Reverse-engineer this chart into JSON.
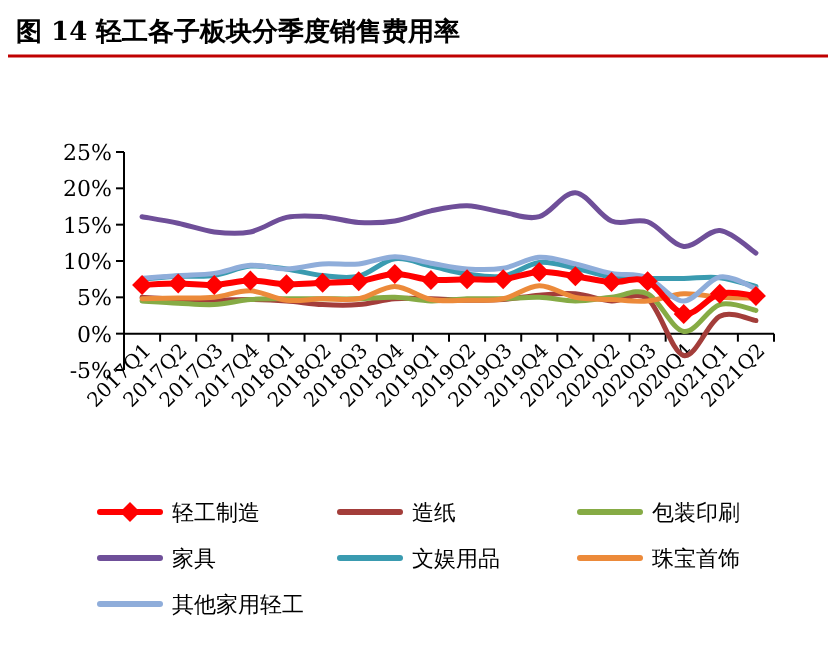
{
  "chart_data": {
    "type": "line",
    "title": "图 14  轻工各子板块分季度销售费用率",
    "categories": [
      "2017Q1",
      "2017Q2",
      "2017Q3",
      "2017Q4",
      "2018Q1",
      "2018Q2",
      "2018Q3",
      "2018Q4",
      "2019Q1",
      "2019Q2",
      "2019Q3",
      "2019Q4",
      "2020Q1",
      "2020Q2",
      "2020Q3",
      "2020Q4",
      "2021Q1",
      "2021Q2"
    ],
    "ylim": [
      -5,
      25
    ],
    "yticks": [
      {
        "value": -5,
        "label": "-5%"
      },
      {
        "value": 0,
        "label": "0%"
      },
      {
        "value": 5,
        "label": "5%"
      },
      {
        "value": 10,
        "label": "10%"
      },
      {
        "value": 15,
        "label": "15%"
      },
      {
        "value": 20,
        "label": "20%"
      },
      {
        "value": 25,
        "label": "25%"
      }
    ],
    "legend": "bottom",
    "grid": false,
    "line_style": "solid",
    "series": [
      {
        "name": "轻工制造",
        "color": "#ff0000",
        "marker": "diamond",
        "values": [
          6.7,
          6.9,
          6.7,
          7.3,
          6.8,
          7.0,
          7.2,
          8.2,
          7.4,
          7.5,
          7.5,
          8.5,
          7.9,
          7.1,
          7.2,
          2.7,
          5.5,
          5.2
        ]
      },
      {
        "name": "造纸",
        "color": "#a33d3a",
        "values": [
          5.0,
          4.7,
          4.6,
          4.7,
          4.5,
          4.0,
          4.0,
          4.8,
          4.8,
          4.6,
          4.7,
          5.3,
          5.5,
          4.5,
          4.8,
          -3.0,
          2.4,
          1.8
        ]
      },
      {
        "name": "包装印刷",
        "color": "#86ab45",
        "values": [
          4.5,
          4.2,
          4.0,
          4.7,
          4.8,
          4.8,
          4.8,
          5.0,
          4.5,
          4.8,
          4.8,
          5.0,
          4.5,
          5.0,
          5.5,
          0.3,
          4.0,
          3.2
        ]
      },
      {
        "name": "家具",
        "color": "#6f4f99",
        "values": [
          16.1,
          15.2,
          14.0,
          14.0,
          16.0,
          16.1,
          15.3,
          15.5,
          16.9,
          17.6,
          16.7,
          16.1,
          19.4,
          15.5,
          15.4,
          12.0,
          14.2,
          11.1
        ]
      },
      {
        "name": "文娱用品",
        "color": "#3a9bb0",
        "values": [
          7.5,
          7.9,
          8.0,
          9.3,
          8.9,
          8.0,
          7.9,
          10.3,
          9.3,
          8.2,
          7.9,
          9.8,
          9.0,
          7.8,
          7.6,
          7.6,
          7.7,
          6.5
        ]
      },
      {
        "name": "珠宝首饰",
        "color": "#ec8a3a",
        "values": [
          4.8,
          4.9,
          5.0,
          5.9,
          4.6,
          4.8,
          4.8,
          6.5,
          4.7,
          4.6,
          4.8,
          6.6,
          5.0,
          4.7,
          4.5,
          5.5,
          5.0,
          4.9
        ]
      },
      {
        "name": "其他家用轻工",
        "color": "#8fadda",
        "values": [
          7.6,
          8.0,
          8.3,
          9.4,
          8.9,
          9.6,
          9.6,
          10.6,
          9.7,
          8.9,
          9.0,
          10.5,
          9.6,
          8.3,
          7.7,
          4.5,
          7.8,
          6.2
        ]
      }
    ]
  }
}
